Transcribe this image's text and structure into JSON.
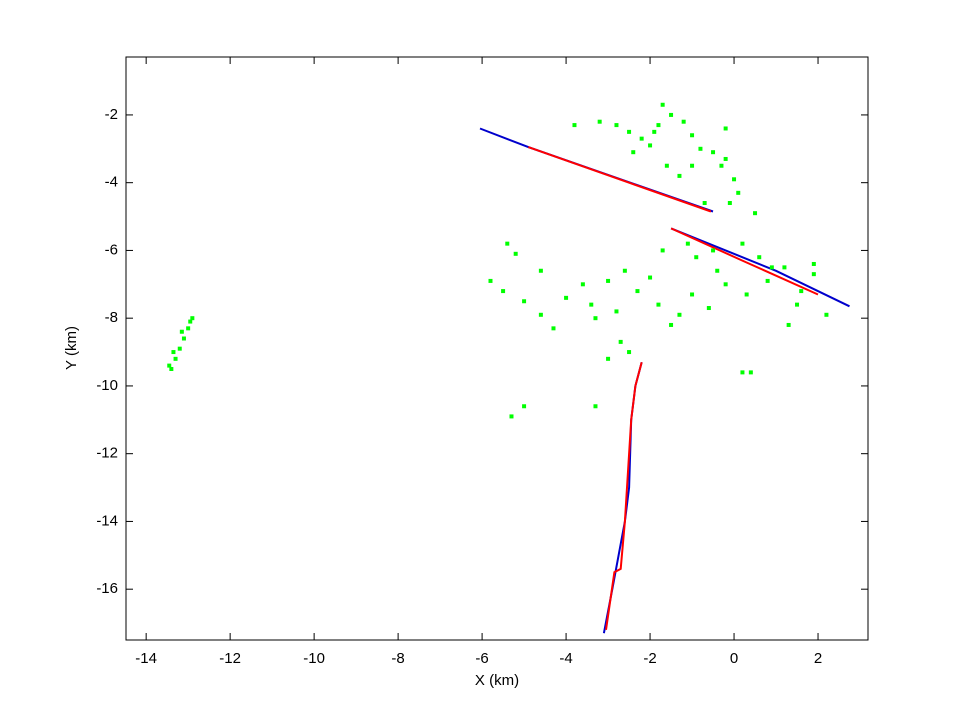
{
  "chart_data": {
    "type": "line",
    "xlabel": "X (km)",
    "ylabel": "Y (km)",
    "xlim": [
      -14.48,
      3.19
    ],
    "ylim": [
      -17.5,
      -0.29
    ],
    "xticks": [
      -14,
      -12,
      -10,
      -8,
      -6,
      -4,
      -2,
      0,
      2
    ],
    "yticks": [
      -16,
      -14,
      -12,
      -10,
      -8,
      -6,
      -4,
      -2
    ],
    "series": [
      {
        "color": "#0000cc",
        "mode": "line",
        "x": [
          -6.05,
          -4.9,
          -0.5,
          null,
          -1.5,
          1.0,
          2.75,
          null,
          -3.1,
          -2.9,
          -2.75,
          -2.6,
          -2.5,
          -2.45,
          -2.35,
          -2.2
        ],
        "values": [
          -2.4,
          -2.95,
          -4.85,
          null,
          -5.35,
          -6.6,
          -7.65,
          null,
          -17.3,
          -16.0,
          -15.0,
          -14.0,
          -13.0,
          -11.0,
          -10.0,
          -9.3
        ]
      },
      {
        "color": "#ff0000",
        "mode": "line",
        "x": [
          -4.9,
          -2.5,
          -0.55,
          null,
          -1.5,
          0.2,
          2.0,
          null,
          -3.05,
          -2.85,
          -2.7,
          -2.6,
          -2.55,
          -2.45,
          -2.35,
          -2.2
        ],
        "values": [
          -2.95,
          -4.0,
          -4.85,
          null,
          -5.35,
          -6.3,
          -7.3,
          null,
          -17.2,
          -15.5,
          -15.4,
          -14.0,
          -13.0,
          -11.0,
          -10.0,
          -9.3
        ]
      },
      {
        "color": "#00ff00",
        "mode": "scatter",
        "x": [
          -13.4,
          -13.3,
          -13.2,
          -13.1,
          -13.0,
          -12.9,
          -13.35,
          -13.15,
          -12.95,
          -13.45,
          -3.8,
          -3.2,
          -2.8,
          -2.5,
          -2.2,
          -2.0,
          -1.8,
          -1.5,
          -1.2,
          -1.0,
          -0.8,
          -0.5,
          -0.3,
          0,
          0.1,
          -0.2,
          -1.6,
          -1.3,
          -2.4,
          -1.9,
          -0.7,
          0.5,
          -1.7,
          -0.2,
          -1.0,
          -0.1,
          -5.4,
          -5.2,
          -5.8,
          -5.5,
          -5.0,
          -4.6,
          -4.3,
          -4.0,
          -3.6,
          -3.4,
          -3.0,
          -2.6,
          -2.0,
          -2.3,
          -1.8,
          -1.3,
          -1.0,
          -0.6,
          -0.2,
          0.3,
          0.8,
          1.2,
          1.6,
          1.9,
          -0.9,
          -0.4,
          0.6,
          -2.8,
          -2.7,
          -2.5,
          -3.0,
          -1.5,
          -0.5,
          0.2,
          0.9,
          1.3,
          2.2,
          1.5,
          -4.6,
          -1.7,
          0.2,
          0.4,
          -3.3,
          -5.3,
          -5.0,
          -1.1,
          -3.3,
          1.9
        ],
        "values": [
          -9.5,
          -9.2,
          -8.9,
          -8.6,
          -8.3,
          -8.0,
          -9.0,
          -8.4,
          -8.1,
          -9.4,
          -2.3,
          -2.2,
          -2.3,
          -2.5,
          -2.7,
          -2.9,
          -2.3,
          -2.0,
          -2.2,
          -2.6,
          -3.0,
          -3.1,
          -3.5,
          -3.9,
          -4.3,
          -3.3,
          -3.5,
          -3.8,
          -3.1,
          -2.5,
          -4.6,
          -4.9,
          -1.7,
          -2.4,
          -3.5,
          -4.6,
          -5.8,
          -6.1,
          -6.9,
          -7.2,
          -7.5,
          -7.9,
          -8.3,
          -7.4,
          -7.0,
          -7.6,
          -6.9,
          -6.6,
          -6.8,
          -7.2,
          -7.6,
          -7.9,
          -7.3,
          -7.7,
          -7.0,
          -7.3,
          -6.9,
          -6.5,
          -7.2,
          -6.4,
          -6.2,
          -6.6,
          -6.2,
          -7.8,
          -8.7,
          -9.0,
          -9.2,
          -8.2,
          -6.0,
          -5.8,
          -6.5,
          -8.2,
          -7.9,
          -7.6,
          -6.6,
          -6.0,
          -9.6,
          -9.6,
          -10.6,
          -10.9,
          -10.6,
          -5.8,
          -8.0,
          -6.7
        ]
      }
    ]
  }
}
